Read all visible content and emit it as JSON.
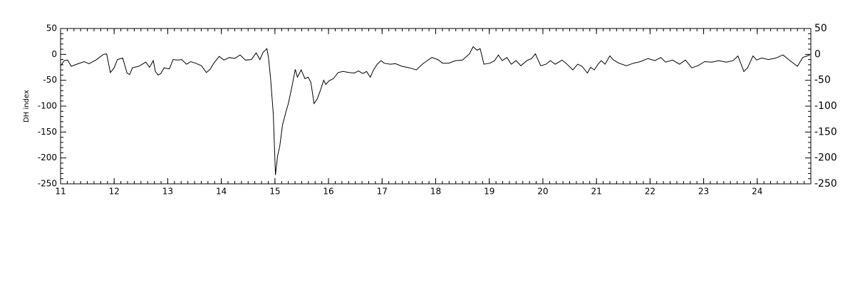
{
  "chart_data": {
    "type": "line",
    "ylabel": "DH index",
    "xlim": [
      11,
      25
    ],
    "xticks": [
      11,
      12,
      13,
      14,
      15,
      16,
      17,
      18,
      19,
      20,
      21,
      22,
      23,
      24
    ],
    "ylim": [
      -250,
      50
    ],
    "yticks": [
      50,
      0,
      -50,
      -100,
      -150,
      -200,
      -250
    ],
    "series": [
      {
        "color": "#000000",
        "x": [
          11.0,
          11.07,
          11.13,
          11.2,
          11.33,
          11.44,
          11.53,
          11.66,
          11.8,
          11.86,
          11.93,
          12.0,
          12.06,
          12.16,
          12.24,
          12.29,
          12.34,
          12.46,
          12.59,
          12.66,
          12.73,
          12.77,
          12.82,
          12.87,
          12.93,
          13.03,
          13.1,
          13.19,
          13.26,
          13.35,
          13.43,
          13.52,
          13.63,
          13.72,
          13.79,
          13.86,
          13.96,
          14.05,
          14.15,
          14.25,
          14.35,
          14.45,
          14.56,
          14.65,
          14.72,
          14.78,
          14.85,
          14.88,
          14.92,
          14.97,
          15.01,
          15.05,
          15.09,
          15.14,
          15.21,
          15.25,
          15.32,
          15.38,
          15.42,
          15.49,
          15.56,
          15.62,
          15.67,
          15.73,
          15.79,
          15.85,
          15.91,
          15.95,
          16.01,
          16.09,
          16.18,
          16.27,
          16.38,
          16.48,
          16.56,
          16.64,
          16.71,
          16.78,
          16.84,
          16.91,
          16.98,
          17.04,
          17.15,
          17.25,
          17.37,
          17.51,
          17.64,
          17.75,
          17.84,
          17.93,
          18.04,
          18.13,
          18.24,
          18.37,
          18.5,
          18.63,
          18.7,
          18.77,
          18.83,
          18.9,
          19.01,
          19.1,
          19.17,
          19.24,
          19.33,
          19.41,
          19.5,
          19.59,
          19.7,
          19.79,
          19.86,
          19.96,
          20.06,
          20.14,
          20.23,
          20.36,
          20.43,
          20.56,
          20.65,
          20.73,
          20.83,
          20.89,
          20.96,
          21.03,
          21.09,
          21.16,
          21.25,
          21.32,
          21.42,
          21.56,
          21.69,
          21.82,
          21.96,
          22.09,
          22.2,
          22.29,
          22.42,
          22.55,
          22.66,
          22.78,
          22.89,
          23.02,
          23.15,
          23.28,
          23.42,
          23.55,
          23.64,
          23.75,
          23.82,
          23.92,
          23.99,
          24.08,
          24.21,
          24.35,
          24.48,
          24.61,
          24.75,
          24.85,
          24.98
        ],
        "values": [
          -22,
          -12,
          -11,
          -23,
          -18,
          -14,
          -18,
          -11,
          0,
          1,
          -35,
          -26,
          -10,
          -7,
          -36,
          -39,
          -26,
          -23,
          -15,
          -25,
          -12,
          -33,
          -40,
          -37,
          -26,
          -28,
          -10,
          -11,
          -10,
          -19,
          -14,
          -17,
          -22,
          -35,
          -29,
          -17,
          -4,
          -11,
          -6,
          -8,
          -1,
          -11,
          -10,
          3,
          -10,
          4,
          11,
          -6,
          -47,
          -116,
          -233,
          -196,
          -178,
          -137,
          -109,
          -95,
          -61,
          -29,
          -44,
          -30,
          -47,
          -44,
          -54,
          -95,
          -86,
          -69,
          -50,
          -58,
          -51,
          -47,
          -35,
          -33,
          -35,
          -36,
          -32,
          -37,
          -33,
          -44,
          -30,
          -19,
          -12,
          -17,
          -19,
          -18,
          -23,
          -26,
          -30,
          -19,
          -12,
          -6,
          -10,
          -17,
          -17,
          -12,
          -11,
          1,
          15,
          8,
          11,
          -19,
          -17,
          -12,
          -1,
          -12,
          -6,
          -19,
          -12,
          -22,
          -12,
          -8,
          1,
          -22,
          -19,
          -12,
          -19,
          -11,
          -17,
          -30,
          -19,
          -23,
          -36,
          -25,
          -30,
          -19,
          -12,
          -19,
          -3,
          -11,
          -17,
          -22,
          -17,
          -14,
          -8,
          -12,
          -6,
          -15,
          -11,
          -19,
          -11,
          -26,
          -22,
          -14,
          -15,
          -12,
          -15,
          -12,
          -3,
          -33,
          -26,
          -3,
          -11,
          -7,
          -10,
          -7,
          -1,
          -12,
          -23,
          -6,
          -1
        ]
      }
    ]
  }
}
